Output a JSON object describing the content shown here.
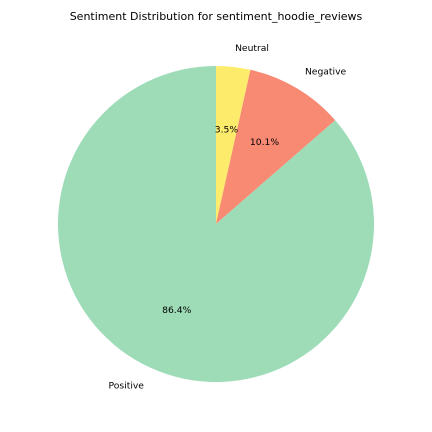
{
  "chart_data": {
    "type": "pie",
    "title": "Sentiment Distribution for sentiment_hoodie_reviews",
    "slices": [
      {
        "label": "Neutral",
        "value": 3.5,
        "pct_label": "3.5%",
        "color": "#fdeb6c"
      },
      {
        "label": "Negative",
        "value": 10.1,
        "pct_label": "10.1%",
        "color": "#f88a74"
      },
      {
        "label": "Positive",
        "value": 86.4,
        "pct_label": "86.4%",
        "color": "#9ddcb7"
      }
    ],
    "start_angle_deg": 90,
    "direction": "clockwise",
    "legend": "none"
  }
}
